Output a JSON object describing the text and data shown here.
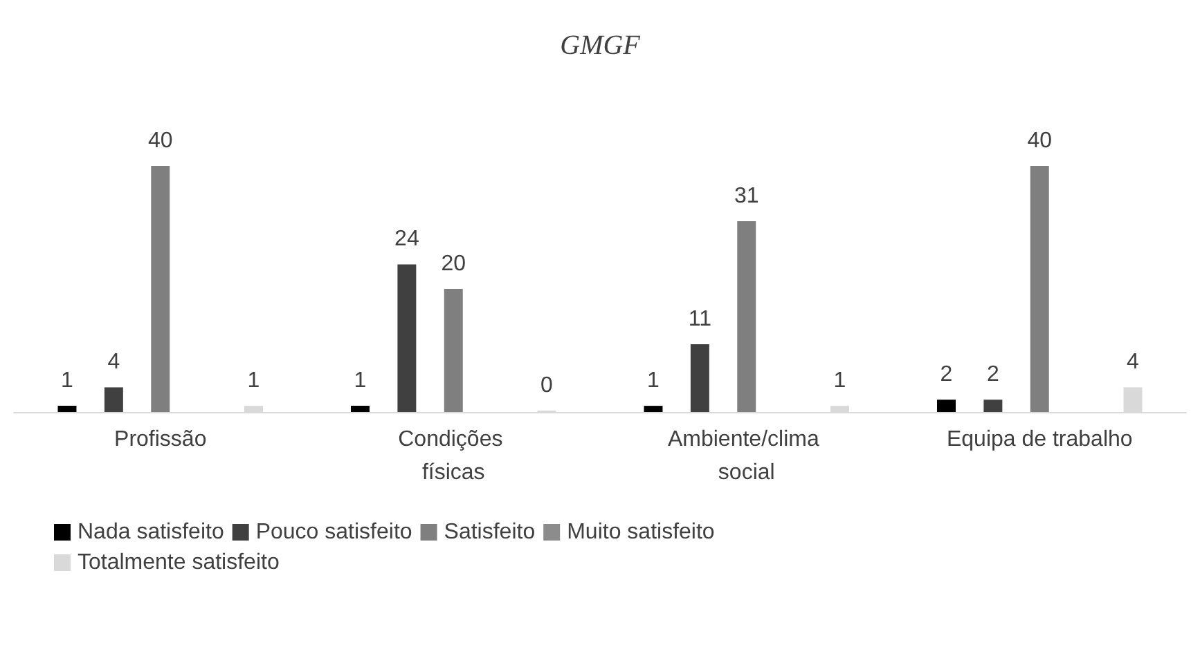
{
  "chart_data": {
    "type": "bar",
    "title": "GMGF",
    "categories": [
      "Profissão",
      "Condições físicas",
      "Ambiente/clima social",
      "Equipa de trabalho"
    ],
    "series": [
      {
        "name": "Nada satisfeito",
        "color": "#000000",
        "values": [
          1,
          1,
          1,
          2
        ]
      },
      {
        "name": "Pouco satisfeito",
        "color": "#404040",
        "values": [
          4,
          24,
          11,
          2
        ]
      },
      {
        "name": "Satisfeito",
        "color": "#7f7f7f",
        "values": [
          40,
          20,
          31,
          40
        ]
      },
      {
        "name": "Muito satisfeito",
        "color": "#8c8c8c",
        "values": [
          null,
          null,
          null,
          null
        ]
      },
      {
        "name": "Totalmente satisfeito",
        "color": "#d9d9d9",
        "values": [
          1,
          0,
          1,
          4
        ]
      }
    ],
    "data_labels": true,
    "legend": "bottom",
    "grid": false
  }
}
